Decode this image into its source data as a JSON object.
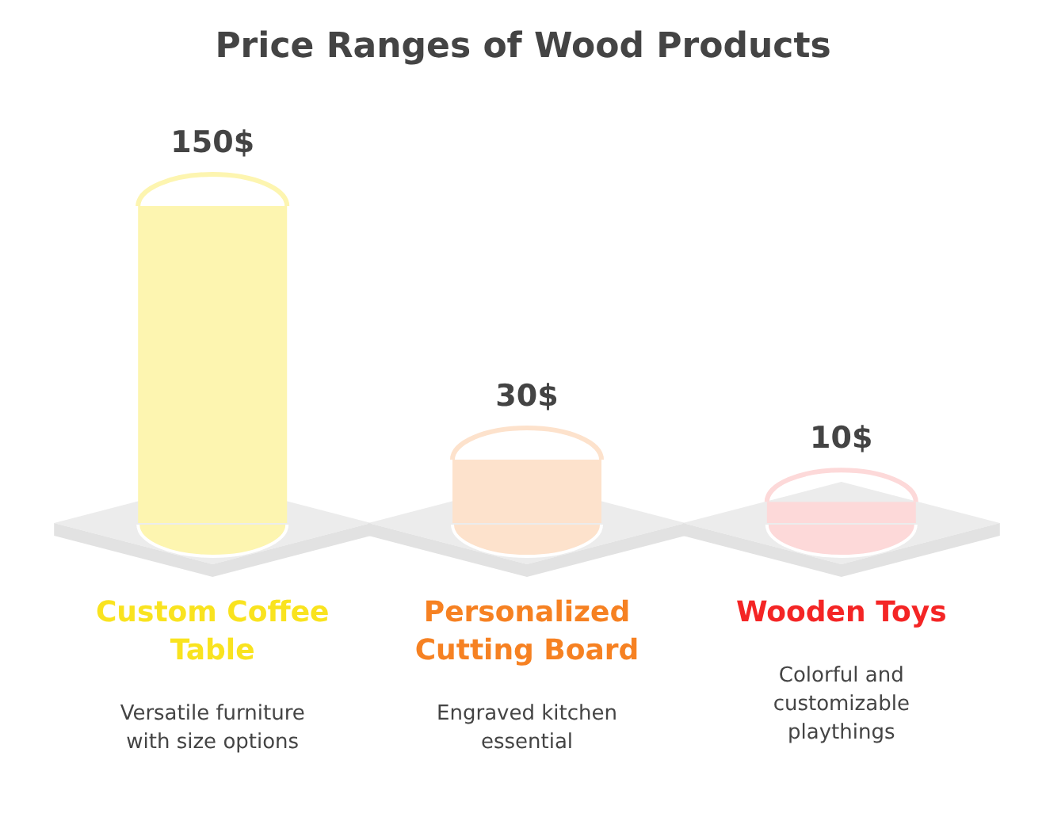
{
  "chart_data": {
    "type": "bar",
    "title": "Price Ranges of Wood Products",
    "categories": [
      "Custom Coffee Table",
      "Personalized Cutting Board",
      "Wooden Toys"
    ],
    "values": [
      150,
      30,
      10
    ],
    "colors": [
      "#fdf5b0",
      "#fde2cc",
      "#fdd9d9"
    ],
    "value_labels": [
      "150$",
      "30$",
      "10$"
    ],
    "annotations": [
      "Versatile furniture with size options",
      "Engraved kitchen essential",
      "Colorful and customizable playthings"
    ]
  }
}
